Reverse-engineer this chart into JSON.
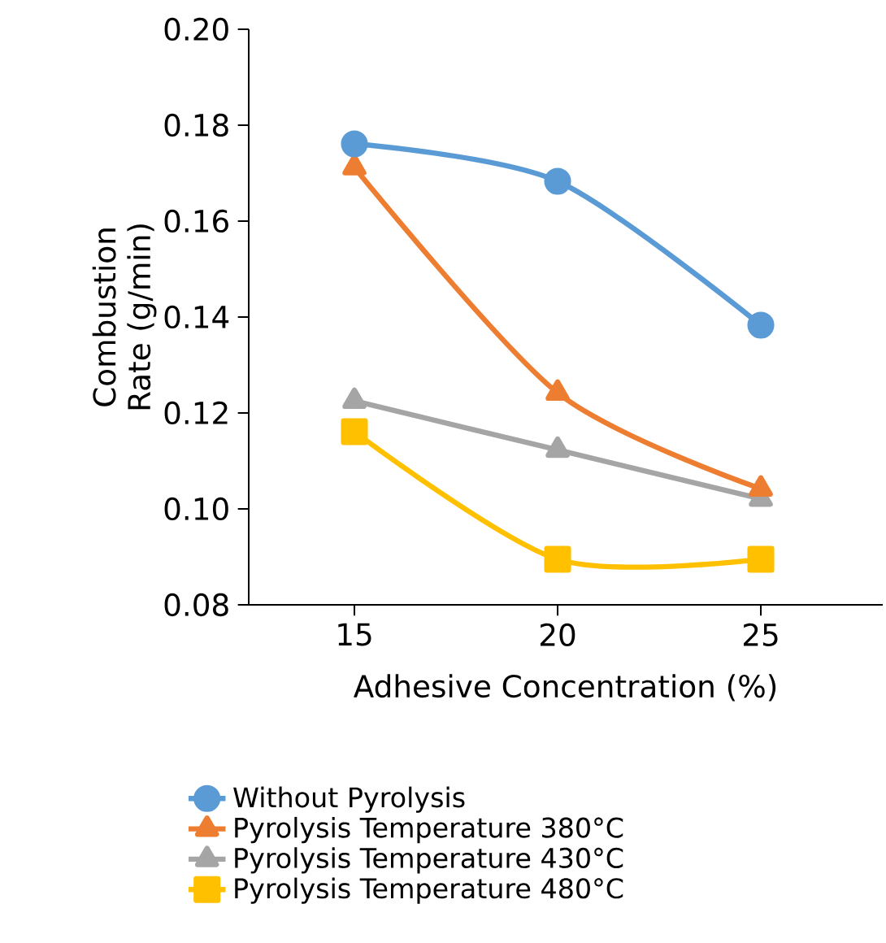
{
  "chart_data": {
    "type": "line",
    "xlabel": "Adhesive Concentration (%)",
    "ylabel": "Combustion Rate (g/min)",
    "x": [
      15,
      20,
      25
    ],
    "xlim": [
      12.4,
      28
    ],
    "xticks": [
      15,
      20,
      25
    ],
    "ylim": [
      0.08,
      0.2
    ],
    "yticks": [
      {
        "value": 0.08,
        "label": "0.08"
      },
      {
        "value": 0.1,
        "label": "0.10"
      },
      {
        "value": 0.12,
        "label": "0.12"
      },
      {
        "value": 0.14,
        "label": "0.14"
      },
      {
        "value": 0.16,
        "label": "0.16"
      },
      {
        "value": 0.18,
        "label": "0.18"
      },
      {
        "value": 0.2,
        "label": "0.20"
      }
    ],
    "grid": false,
    "legend": "bottom",
    "series": [
      {
        "name": "Without Pyrolysis",
        "color": "#5b9bd5",
        "marker": "circle",
        "values": [
          0.1761,
          0.1683,
          0.1383
        ]
      },
      {
        "name": "Pyrolysis Temperature 380°C",
        "color": "#ed7d31",
        "marker": "triangle",
        "values": [
          0.1712,
          0.1242,
          0.1042
        ]
      },
      {
        "name": "Pyrolysis Temperature 430°C",
        "color": "#a5a5a5",
        "marker": "triangle",
        "values": [
          0.1225,
          0.1123,
          0.1021
        ]
      },
      {
        "name": "Pyrolysis Temperature 480°C",
        "color": "#ffc000",
        "marker": "square",
        "values": [
          0.1161,
          0.0895,
          0.0895
        ]
      }
    ]
  }
}
